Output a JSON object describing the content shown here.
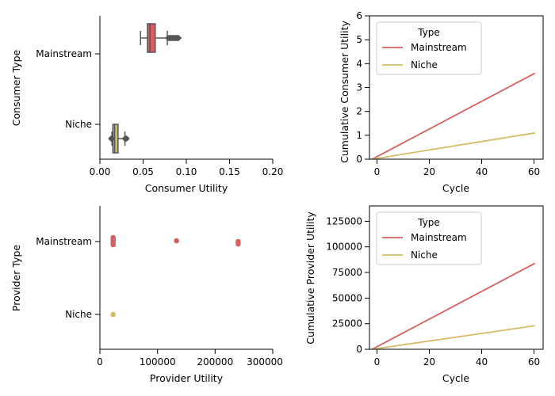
{
  "colors": {
    "mainstream": "#d65f5f",
    "niche": "#d5bb67",
    "outlier": "#555555",
    "axis": "#000000"
  },
  "chart_data": [
    {
      "id": "consumer-box",
      "type": "box",
      "xlabel": "Consumer Utility",
      "ylabel": "Consumer Type",
      "xlim": [
        0,
        0.2
      ],
      "xticks": [
        "0.00",
        "0.05",
        "0.10",
        "0.15",
        "0.20"
      ],
      "categories": [
        "Mainstream",
        "Niche"
      ],
      "boxes": [
        {
          "name": "Mainstream",
          "whisker_low": 0.047,
          "q1": 0.055,
          "median": 0.058,
          "q3": 0.064,
          "whisker_high": 0.078,
          "outliers": [
            0.079,
            0.08,
            0.081,
            0.082,
            0.083,
            0.084,
            0.085,
            0.086,
            0.087,
            0.088,
            0.089,
            0.09,
            0.091
          ]
        },
        {
          "name": "Niche",
          "whisker_low": 0.014,
          "q1": 0.015,
          "median": 0.017,
          "q3": 0.021,
          "whisker_high": 0.029,
          "outliers": [
            0.013,
            0.014,
            0.029,
            0.03,
            0.031
          ]
        }
      ]
    },
    {
      "id": "consumer-line",
      "type": "line",
      "xlabel": "Cycle",
      "ylabel": "Cumulative Consumer Utility",
      "xlim": [
        -1,
        63
      ],
      "ylim": [
        0,
        6
      ],
      "xticks": [
        "0",
        "20",
        "40",
        "60"
      ],
      "yticks": [
        "0",
        "1",
        "2",
        "3",
        "4",
        "5",
        "6"
      ],
      "legend_title": "Type",
      "series": [
        {
          "name": "Mainstream",
          "x": [
            0,
            60
          ],
          "y": [
            0,
            3.6
          ]
        },
        {
          "name": "Niche",
          "x": [
            0,
            60
          ],
          "y": [
            0,
            1.1
          ]
        }
      ]
    },
    {
      "id": "provider-strip",
      "type": "scatter",
      "xlabel": "Provider Utility",
      "ylabel": "Provider Type",
      "xlim": [
        0,
        300000
      ],
      "xticks": [
        "0",
        "100000",
        "200000",
        "300000"
      ],
      "categories": [
        "Mainstream",
        "Niche"
      ],
      "points": [
        {
          "category": "Mainstream",
          "x": 23000,
          "jitter": -0.08
        },
        {
          "category": "Mainstream",
          "x": 23000,
          "jitter": -0.03
        },
        {
          "category": "Mainstream",
          "x": 23000,
          "jitter": 0.02
        },
        {
          "category": "Mainstream",
          "x": 23000,
          "jitter": 0.06
        },
        {
          "category": "Mainstream",
          "x": 23000,
          "jitter": 0.1
        },
        {
          "category": "Mainstream",
          "x": 133000,
          "jitter": 0.02
        },
        {
          "category": "Mainstream",
          "x": 240000,
          "jitter": -0.06
        },
        {
          "category": "Mainstream",
          "x": 240000,
          "jitter": 0.0
        },
        {
          "category": "Niche",
          "x": 23000,
          "jitter": 0.0
        }
      ]
    },
    {
      "id": "provider-line",
      "type": "line",
      "xlabel": "Cycle",
      "ylabel": "Cumulative Provider Utility",
      "xlim": [
        -1,
        63
      ],
      "ylim": [
        0,
        140000
      ],
      "xticks": [
        "0",
        "20",
        "40",
        "60"
      ],
      "yticks": [
        "0",
        "25000",
        "50000",
        "75000",
        "100000",
        "125000"
      ],
      "legend_title": "Type",
      "series": [
        {
          "name": "Mainstream",
          "x": [
            0,
            60
          ],
          "y": [
            0,
            84000
          ]
        },
        {
          "name": "Niche",
          "x": [
            0,
            60
          ],
          "y": [
            0,
            23000
          ]
        }
      ]
    }
  ]
}
